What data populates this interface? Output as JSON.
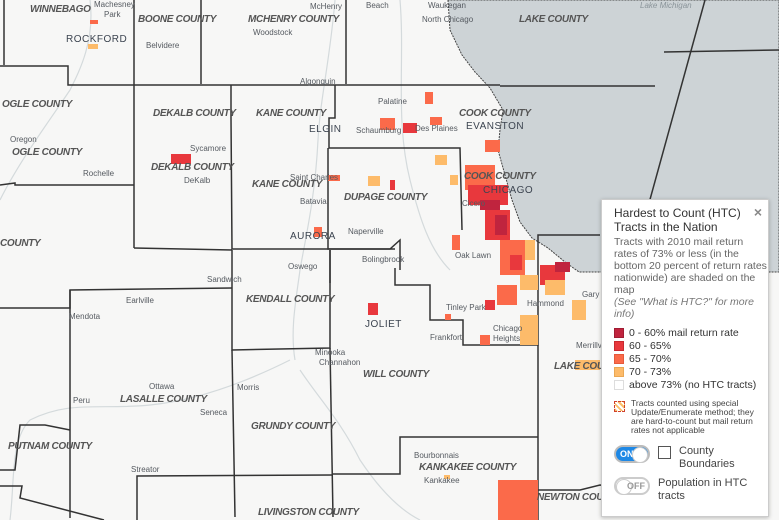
{
  "map": {
    "water_label": "Lake Michigan",
    "counties": [
      "WINNEBAGO",
      "BOONE COUNTY",
      "MCHENRY COUNTY",
      "LAKE COUNTY",
      "OGLE COUNTY",
      "OGLE COUNTY",
      "DEKALB COUNTY",
      "DEKALB COUNTY",
      "KANE COUNTY",
      "KANE COUNTY",
      "COOK COUNTY",
      "COOK COUNTY",
      "DUPAGE COUNTY",
      "COUNTY",
      "KENDALL COUNTY",
      "WILL COUNTY",
      "LASALLE COUNTY",
      "GRUNDY COUNTY",
      "PUTNAM COUNTY",
      "KANKAKEE COUNTY",
      "LIVINGSTON COUNTY",
      "LAKE COUNTY",
      "NEWTON COUNTY"
    ],
    "big_cities": [
      "ROCKFORD",
      "ELGIN",
      "EVANSTON",
      "AURORA",
      "CHICAGO",
      "JOLIET"
    ],
    "cities": [
      "Machesney",
      "Park",
      "Belvidere",
      "Woodstock",
      "McHenry",
      "Beach",
      "Waukegan",
      "North Chicago",
      "Algonquin",
      "Palatine",
      "Schaumburg",
      "Des Plaines",
      "Sycamore",
      "DeKalb",
      "Oregon",
      "Rochelle",
      "Saint Charles",
      "Batavia",
      "Naperville",
      "Cicero",
      "Oak Lawn",
      "Bolingbrook",
      "Oswego",
      "Sandwich",
      "Earlville",
      "Mendota",
      "Tinley Park",
      "Hammond",
      "Gary",
      "Frankfort",
      "Chicago",
      "Heights",
      "Merrillville",
      "Minooka",
      "Channahon",
      "Ottawa",
      "Peru",
      "Morris",
      "Seneca",
      "Streator",
      "Bourbonnais",
      "Kankakee"
    ],
    "colors": {
      "land": "#f7f7f6",
      "water": "#cdd3d6",
      "boundary": "#333333"
    }
  },
  "legend": {
    "title": "Hardest to Count (HTC) Tracts in the Nation",
    "close_icon": "×",
    "description": "Tracts with 2010 mail return rates of 73% or less (in the bottom 20 percent of return rates nationwide) are shaded on the map",
    "note": "(See \"What is HTC?\" for more info)",
    "items": [
      {
        "label": "0 - 60% mail return rate",
        "color": "#c0243e"
      },
      {
        "label": "60 - 65%",
        "color": "#e8383d"
      },
      {
        "label": "65 - 70%",
        "color": "#fb6a4a"
      },
      {
        "label": "70 - 73%",
        "color": "#fdbb6a"
      },
      {
        "label": "above 73% (no HTC tracts)",
        "color": "#ffffff"
      }
    ],
    "special_text": "Tracts counted using special Update/Enumerate method; they are hard-to-count but mail return rates not applicable",
    "county_toggle": {
      "state": "ON",
      "checked": false,
      "label": "County Boundaries"
    },
    "population_toggle": {
      "state": "OFF",
      "label": "Population in HTC tracts"
    }
  }
}
